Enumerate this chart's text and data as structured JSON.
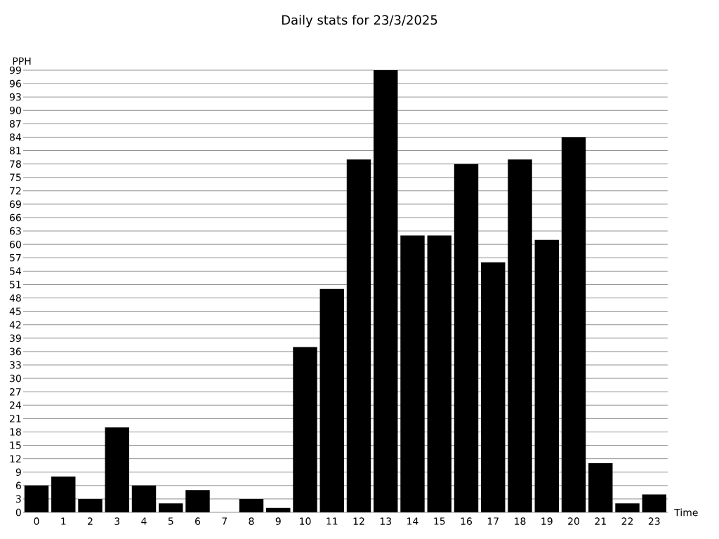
{
  "chart_data": {
    "type": "bar",
    "title": "Daily stats for 23/3/2025",
    "xlabel": "Time",
    "ylabel": "PPH",
    "categories": [
      "0",
      "1",
      "2",
      "3",
      "4",
      "5",
      "6",
      "7",
      "8",
      "9",
      "10",
      "11",
      "12",
      "13",
      "14",
      "15",
      "16",
      "17",
      "18",
      "19",
      "20",
      "21",
      "22",
      "23"
    ],
    "values": [
      6,
      8,
      3,
      19,
      6,
      2,
      5,
      0,
      3,
      1,
      37,
      50,
      79,
      99,
      62,
      62,
      78,
      56,
      79,
      61,
      84,
      11,
      2,
      4
    ],
    "color": "#000000",
    "ylim": [
      0,
      99
    ],
    "yticks": [
      0,
      3,
      6,
      9,
      12,
      15,
      18,
      21,
      24,
      27,
      30,
      33,
      36,
      39,
      42,
      45,
      48,
      51,
      54,
      57,
      60,
      63,
      66,
      69,
      72,
      75,
      78,
      81,
      84,
      87,
      90,
      93,
      96,
      99
    ],
    "grid": true
  }
}
